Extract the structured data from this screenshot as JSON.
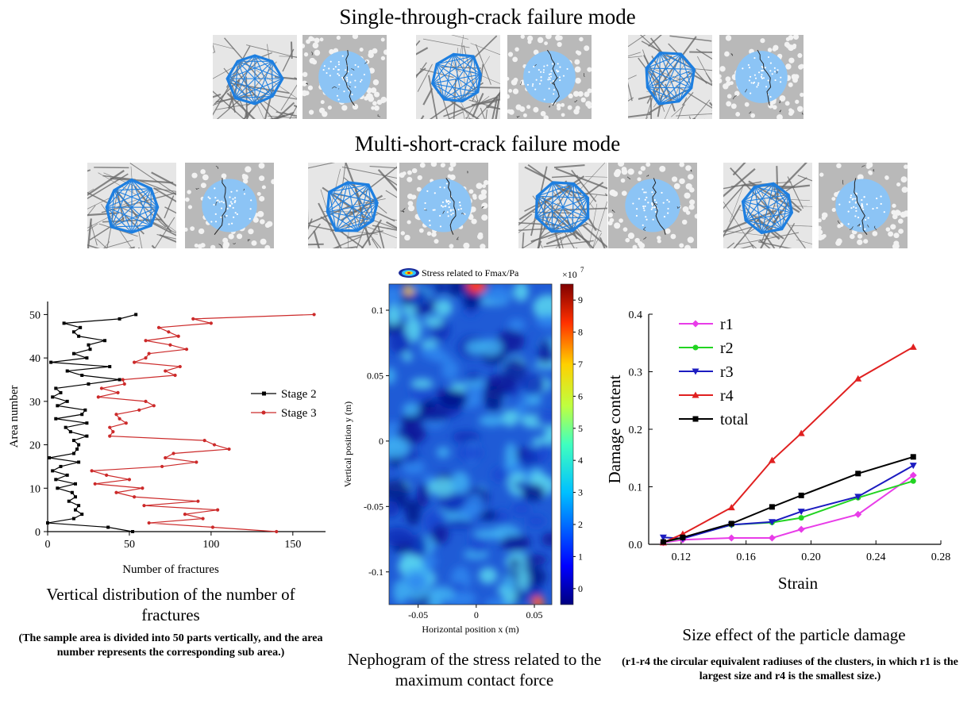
{
  "headings": {
    "single": "Single-through-crack failure mode",
    "multi": "Multi-short-crack failure mode"
  },
  "panels": {
    "single_count": 6,
    "multi_count": 8,
    "colors": {
      "network": "#1e7fe0",
      "particles": "#8cc4f5",
      "background": "#b9b9b9",
      "crack": "#222222"
    }
  },
  "captions": {
    "fractures_title": "Vertical distribution of the number of fractures",
    "fractures_note": "(The sample area is divided into 50 parts vertically, and the area number represents the corresponding sub area.)",
    "nephogram_title": "Nephogram of the stress related to the maximum contact force",
    "damage_title": "Size effect of the particle damage",
    "damage_note": "(r1-r4  the circular equivalent radiuses of the clusters, in which r1 is the largest size and r4 is the smallest size.)"
  },
  "chart_data": [
    {
      "type": "line",
      "xlabel": "Number of fractures",
      "ylabel": "Area number",
      "xlim": [
        0,
        170
      ],
      "ylim": [
        0,
        53
      ],
      "xticks": [
        0,
        50,
        100,
        150
      ],
      "yticks": [
        0,
        10,
        20,
        30,
        40,
        50
      ],
      "legend_position": "right",
      "series": [
        {
          "name": "Stage 2",
          "color": "#000000",
          "marker": "square",
          "points": [
            [
              52,
              0
            ],
            [
              37,
              1
            ],
            [
              0,
              2
            ],
            [
              16,
              3
            ],
            [
              21,
              4
            ],
            [
              17,
              5
            ],
            [
              19,
              6
            ],
            [
              13,
              7
            ],
            [
              17,
              8
            ],
            [
              15,
              9
            ],
            [
              6,
              10
            ],
            [
              17,
              11
            ],
            [
              5,
              12
            ],
            [
              12,
              13
            ],
            [
              3,
              14
            ],
            [
              8,
              15
            ],
            [
              19,
              16
            ],
            [
              1,
              17
            ],
            [
              16,
              18
            ],
            [
              18,
              19
            ],
            [
              19,
              20
            ],
            [
              16,
              21
            ],
            [
              24,
              22
            ],
            [
              14,
              23
            ],
            [
              11,
              24
            ],
            [
              24,
              25
            ],
            [
              5,
              26
            ],
            [
              21,
              27
            ],
            [
              23,
              28
            ],
            [
              6,
              29
            ],
            [
              12,
              30
            ],
            [
              3,
              31
            ],
            [
              8,
              32
            ],
            [
              5,
              33
            ],
            [
              25,
              34
            ],
            [
              44,
              35
            ],
            [
              21,
              36
            ],
            [
              12,
              37
            ],
            [
              38,
              38
            ],
            [
              2,
              39
            ],
            [
              24,
              40
            ],
            [
              16,
              41
            ],
            [
              26,
              42
            ],
            [
              25,
              43
            ],
            [
              35,
              44
            ],
            [
              19,
              45
            ],
            [
              16,
              46
            ],
            [
              20,
              47
            ],
            [
              10,
              48
            ],
            [
              44,
              49
            ],
            [
              54,
              50
            ]
          ]
        },
        {
          "name": "Stage 3",
          "color": "#cc2a2a",
          "marker": "circle",
          "points": [
            [
              140,
              0
            ],
            [
              101,
              1
            ],
            [
              62,
              2
            ],
            [
              95,
              3
            ],
            [
              84,
              4
            ],
            [
              104,
              5
            ],
            [
              59,
              6
            ],
            [
              92,
              7
            ],
            [
              53,
              8
            ],
            [
              42,
              9
            ],
            [
              58,
              10
            ],
            [
              29,
              11
            ],
            [
              50,
              12
            ],
            [
              36,
              13
            ],
            [
              27,
              14
            ],
            [
              70,
              15
            ],
            [
              91,
              16
            ],
            [
              72,
              17
            ],
            [
              77,
              18
            ],
            [
              111,
              19
            ],
            [
              102,
              20
            ],
            [
              96,
              21
            ],
            [
              38,
              22
            ],
            [
              40,
              23
            ],
            [
              38,
              24
            ],
            [
              48,
              25
            ],
            [
              44,
              26
            ],
            [
              42,
              27
            ],
            [
              56,
              28
            ],
            [
              65,
              29
            ],
            [
              60,
              30
            ],
            [
              31,
              31
            ],
            [
              43,
              32
            ],
            [
              33,
              33
            ],
            [
              47,
              34
            ],
            [
              46,
              35
            ],
            [
              78,
              36
            ],
            [
              72,
              37
            ],
            [
              81,
              38
            ],
            [
              53,
              39
            ],
            [
              60,
              40
            ],
            [
              62,
              41
            ],
            [
              85,
              42
            ],
            [
              75,
              43
            ],
            [
              60,
              44
            ],
            [
              80,
              45
            ],
            [
              74,
              46
            ],
            [
              68,
              47
            ],
            [
              100,
              48
            ],
            [
              89,
              49
            ],
            [
              163,
              50
            ]
          ]
        }
      ]
    },
    {
      "type": "heatmap",
      "title": "Stress related to Fmax/Pa",
      "xlabel": "Horizontal position x (m)",
      "ylabel": "Vertical position y (m)",
      "xlim": [
        -0.075,
        0.065
      ],
      "ylim": [
        -0.125,
        0.12
      ],
      "xticks": [
        -0.05,
        0,
        0.05
      ],
      "xtick_labels": [
        "-0.05",
        "0",
        "0.05"
      ],
      "yticks": [
        -0.1,
        -0.05,
        0,
        0.05,
        0.1
      ],
      "ytick_labels": [
        "-0.1",
        "-0.05",
        "0",
        "0.05",
        "0.1"
      ],
      "colorbar_label": "×10",
      "colorbar_exponent": "7",
      "colorbar_range": [
        -0.5,
        9.5
      ],
      "colorbar_ticks": [
        0,
        1,
        2,
        3,
        4,
        5,
        6,
        7,
        8,
        9
      ]
    },
    {
      "type": "line",
      "xlabel": "Strain",
      "ylabel": "Damage content",
      "xlim": [
        0.1,
        0.28
      ],
      "ylim": [
        0,
        0.4
      ],
      "xticks": [
        0.12,
        0.16,
        0.2,
        0.24,
        0.28
      ],
      "xtick_labels": [
        "0.12",
        "0.16",
        "0.20",
        "0.24",
        "0.28"
      ],
      "yticks": [
        0,
        0.1,
        0.2,
        0.3,
        0.4
      ],
      "ytick_labels": [
        "0.0",
        "0.1",
        "0.2",
        "0.3",
        "0.4"
      ],
      "legend_position": "top-left",
      "x": [
        0.109,
        0.121,
        0.151,
        0.176,
        0.194,
        0.229,
        0.263
      ],
      "series": [
        {
          "name": "r1",
          "color": "#e83ce8",
          "marker": "diamond",
          "values": [
            0.003,
            0.008,
            0.011,
            0.011,
            0.026,
            0.052,
            0.12
          ]
        },
        {
          "name": "r2",
          "color": "#22d422",
          "marker": "circle",
          "values": [
            0.004,
            0.011,
            0.034,
            0.038,
            0.046,
            0.081,
            0.11
          ]
        },
        {
          "name": "r3",
          "color": "#1c1cc0",
          "marker": "triangle-down",
          "values": [
            0.012,
            0.01,
            0.034,
            0.039,
            0.057,
            0.083,
            0.137
          ]
        },
        {
          "name": "r4",
          "color": "#e02020",
          "marker": "triangle-up",
          "values": [
            0.003,
            0.018,
            0.064,
            0.146,
            0.193,
            0.288,
            0.343
          ]
        },
        {
          "name": "total",
          "color": "#000000",
          "marker": "square",
          "values": [
            0.004,
            0.012,
            0.036,
            0.065,
            0.085,
            0.123,
            0.152
          ]
        }
      ]
    }
  ]
}
